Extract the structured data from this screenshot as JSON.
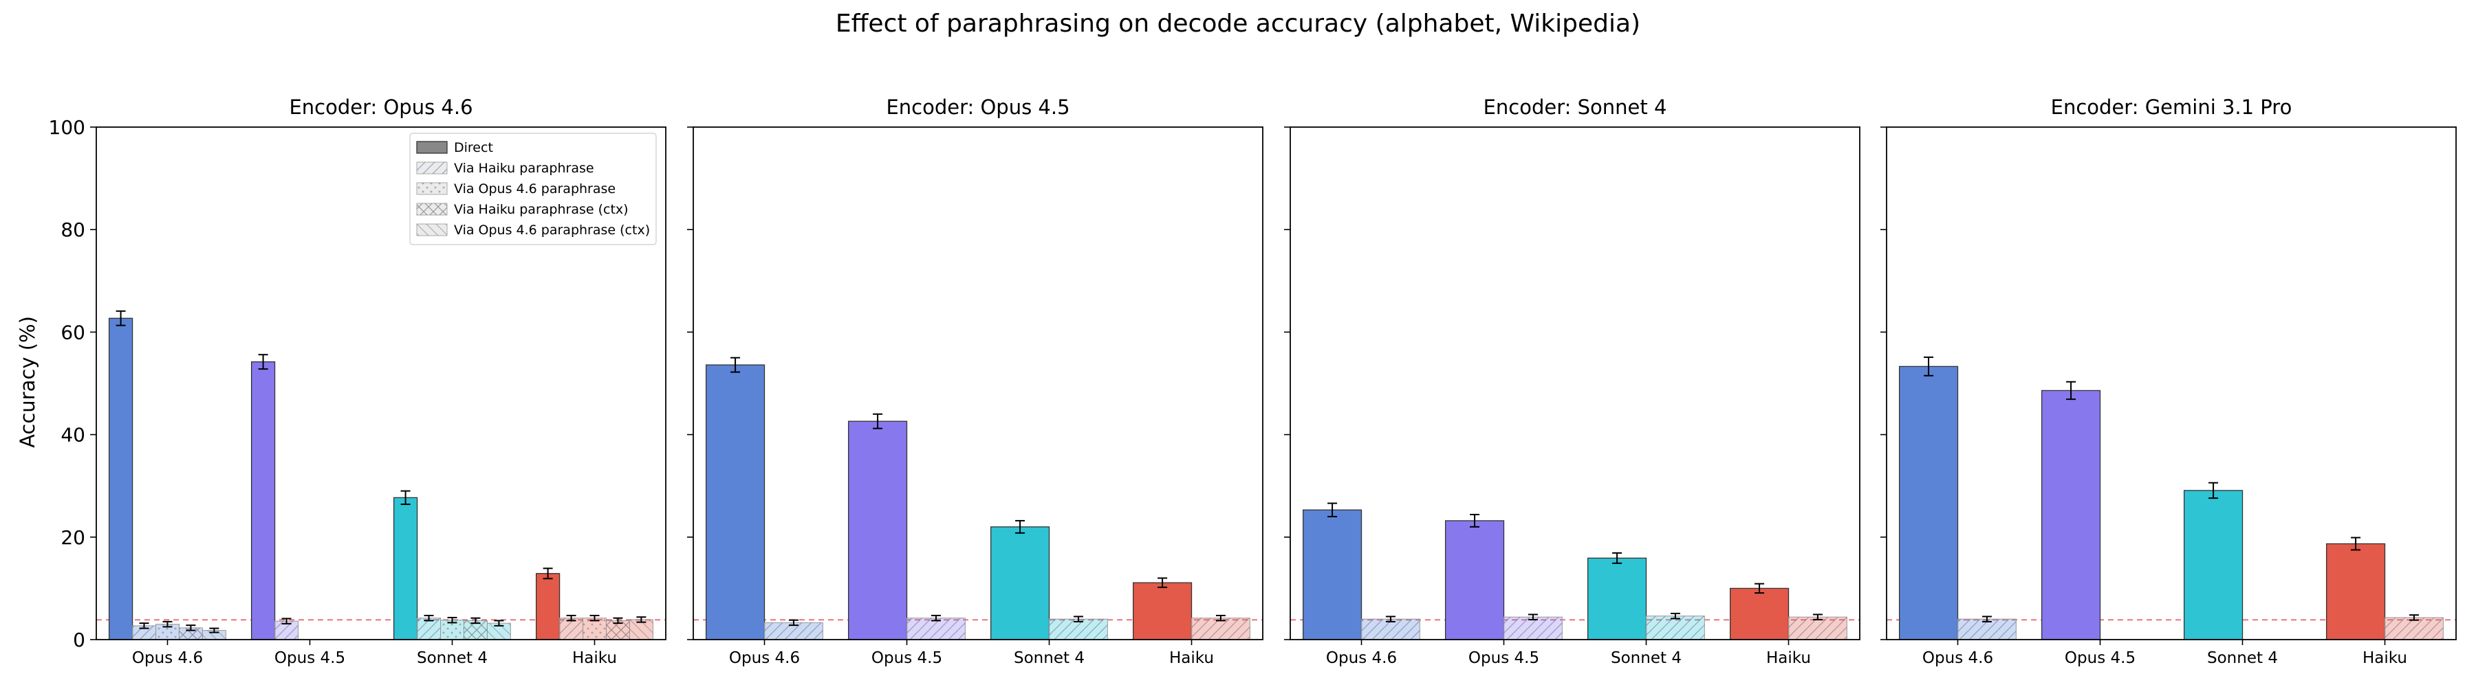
{
  "title": "Effect of paraphrasing on decode accuracy (alphabet, Wikipedia)",
  "colors": {
    "Opus 4.6": "#5b84d6",
    "Opus 4.5": "#8878ee",
    "Sonnet 4": "#2ec4d4",
    "Haiku": "#e35a4a",
    "baseline": "#e8737f"
  },
  "chart_data": [
    {
      "type": "bar",
      "title": "Encoder: Opus 4.6",
      "xlabel": "",
      "ylabel": "Accuracy (%)",
      "ylim": [
        0,
        100
      ],
      "yticks": [
        0,
        20,
        40,
        60,
        80,
        100
      ],
      "chance_level": 3.85,
      "categories": [
        "Opus 4.6",
        "Opus 4.5",
        "Sonnet 4",
        "Haiku"
      ],
      "legend": [
        "Direct",
        "Via Haiku paraphrase",
        "Via Opus 4.6 paraphrase",
        "Via Haiku paraphrase (ctx)",
        "Via Opus 4.6 paraphrase (ctx)"
      ],
      "legend_position": "top-right",
      "series": [
        {
          "name": "Direct",
          "values": [
            62.7,
            54.2,
            27.7,
            12.9
          ],
          "errors": [
            1.4,
            1.4,
            1.3,
            1.0
          ]
        },
        {
          "name": "Via Haiku paraphrase",
          "values": [
            2.7,
            3.6,
            4.2,
            4.2
          ],
          "errors": [
            0.5,
            0.5,
            0.5,
            0.5
          ]
        },
        {
          "name": "Via Opus 4.6 paraphrase",
          "values": [
            3.0,
            null,
            3.8,
            4.2
          ],
          "errors": [
            0.5,
            null,
            0.5,
            0.5
          ]
        },
        {
          "name": "Via Haiku paraphrase (ctx)",
          "values": [
            2.3,
            null,
            3.7,
            3.7
          ],
          "errors": [
            0.5,
            null,
            0.5,
            0.5
          ]
        },
        {
          "name": "Via Opus 4.6 paraphrase (ctx)",
          "values": [
            1.8,
            null,
            3.2,
            3.9
          ],
          "errors": [
            0.4,
            null,
            0.5,
            0.5
          ]
        }
      ]
    },
    {
      "type": "bar",
      "title": "Encoder: Opus 4.5",
      "ylim": [
        0,
        100
      ],
      "chance_level": 3.85,
      "categories": [
        "Opus 4.6",
        "Opus 4.5",
        "Sonnet 4",
        "Haiku"
      ],
      "series": [
        {
          "name": "Direct",
          "values": [
            53.6,
            42.6,
            22.0,
            11.1
          ],
          "errors": [
            1.4,
            1.4,
            1.2,
            0.9
          ]
        },
        {
          "name": "Via Haiku paraphrase",
          "values": [
            3.3,
            4.2,
            4.0,
            4.2
          ],
          "errors": [
            0.5,
            0.5,
            0.5,
            0.5
          ]
        }
      ]
    },
    {
      "type": "bar",
      "title": "Encoder: Sonnet 4",
      "ylim": [
        0,
        100
      ],
      "chance_level": 3.85,
      "categories": [
        "Opus 4.6",
        "Opus 4.5",
        "Sonnet 4",
        "Haiku"
      ],
      "series": [
        {
          "name": "Direct",
          "values": [
            25.3,
            23.2,
            15.9,
            10.0
          ],
          "errors": [
            1.3,
            1.2,
            1.0,
            0.9
          ]
        },
        {
          "name": "Via Haiku paraphrase",
          "values": [
            4.0,
            4.4,
            4.6,
            4.4
          ],
          "errors": [
            0.5,
            0.5,
            0.5,
            0.5
          ]
        }
      ]
    },
    {
      "type": "bar",
      "title": "Encoder: Gemini 3.1 Pro",
      "ylim": [
        0,
        100
      ],
      "chance_level": 3.85,
      "categories": [
        "Opus 4.6",
        "Opus 4.5",
        "Sonnet 4",
        "Haiku"
      ],
      "series": [
        {
          "name": "Direct",
          "values": [
            53.3,
            48.6,
            29.1,
            18.7
          ],
          "errors": [
            1.8,
            1.7,
            1.5,
            1.2
          ]
        },
        {
          "name": "Via Haiku paraphrase",
          "values": [
            4.0,
            null,
            null,
            4.3
          ],
          "errors": [
            0.5,
            null,
            null,
            0.5
          ]
        }
      ]
    }
  ]
}
